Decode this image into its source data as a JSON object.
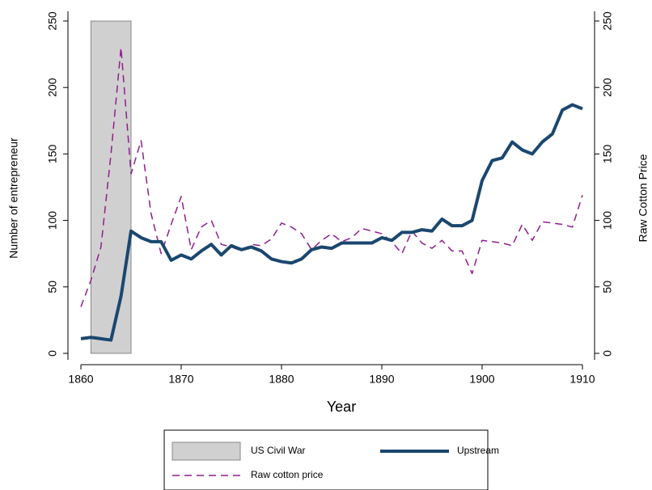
{
  "chart_data": {
    "type": "line",
    "xlabel": "Year",
    "ylabel": "Number of entrepreneur",
    "y2label": "Raw Cotton Price",
    "x": [
      1860,
      1861,
      1862,
      1863,
      1864,
      1865,
      1866,
      1867,
      1868,
      1869,
      1870,
      1871,
      1872,
      1873,
      1874,
      1875,
      1876,
      1877,
      1878,
      1879,
      1880,
      1881,
      1882,
      1883,
      1884,
      1885,
      1886,
      1887,
      1888,
      1889,
      1890,
      1891,
      1892,
      1893,
      1894,
      1895,
      1896,
      1897,
      1898,
      1899,
      1900,
      1901,
      1902,
      1903,
      1904,
      1905,
      1906,
      1907,
      1908,
      1909,
      1910
    ],
    "shade": {
      "name": "US Civil War",
      "x": [
        1861,
        1865
      ],
      "color": "#d0d0d0"
    },
    "series": [
      {
        "name": "Upstream",
        "color": "#1a476f",
        "style": "solid",
        "values": [
          11,
          12,
          11,
          10,
          43,
          92,
          87,
          84,
          84,
          70,
          74,
          71,
          77,
          82,
          74,
          81,
          78,
          80,
          77,
          71,
          69,
          68,
          71,
          78,
          80,
          79,
          83,
          83,
          83,
          83,
          87,
          85,
          91,
          91,
          93,
          92,
          101,
          96,
          96,
          100,
          130,
          145,
          147,
          159,
          153,
          150,
          159,
          165,
          183,
          187,
          184
        ]
      },
      {
        "name": "Raw cotton price",
        "color": "#8e1e8e",
        "style": "dashed",
        "axis": "y2",
        "values": [
          35,
          55,
          80,
          150,
          230,
          135,
          160,
          105,
          75,
          97,
          118,
          78,
          95,
          100,
          82,
          80,
          77,
          82,
          81,
          86,
          98,
          95,
          90,
          78,
          85,
          90,
          84,
          87,
          94,
          92,
          90,
          84,
          75,
          92,
          83,
          79,
          85,
          77,
          77,
          60,
          85,
          84,
          83,
          81,
          97,
          85,
          99,
          98,
          97,
          95,
          119
        ]
      }
    ],
    "xlim": [
      1860,
      1910
    ],
    "xticks": [
      1860,
      1870,
      1880,
      1890,
      1900,
      1910
    ],
    "ylim": [
      0,
      250
    ],
    "yticks": [
      0,
      50,
      100,
      150,
      200,
      250
    ],
    "y2lim": [
      0,
      250
    ],
    "y2ticks": [
      0,
      50,
      100,
      150,
      200,
      250
    ],
    "legend": "bottom"
  }
}
